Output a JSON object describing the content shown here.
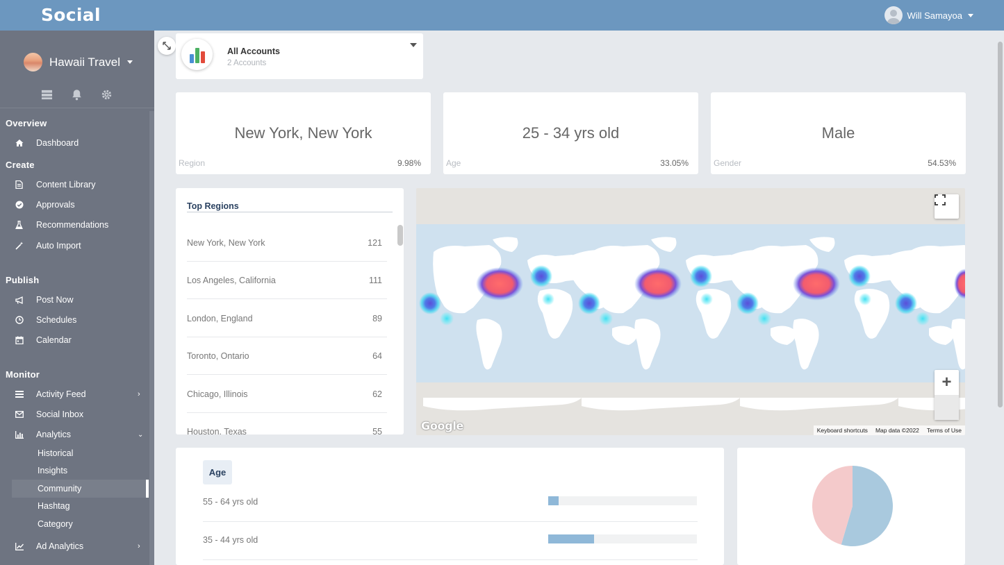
{
  "app": {
    "brand": "Social"
  },
  "user": {
    "name": "Will Samayoa"
  },
  "sidebar": {
    "account_name": "Hawaii Travel",
    "sections": {
      "overview": "Overview",
      "create": "Create",
      "publish": "Publish",
      "monitor": "Monitor"
    },
    "items": {
      "dashboard": "Dashboard",
      "content_library": "Content Library",
      "approvals": "Approvals",
      "recommendations": "Recommendations",
      "auto_import": "Auto Import",
      "post_now": "Post Now",
      "schedules": "Schedules",
      "calendar": "Calendar",
      "activity_feed": "Activity Feed",
      "social_inbox": "Social Inbox",
      "analytics": "Analytics",
      "historical": "Historical",
      "insights": "Insights",
      "community": "Community",
      "hashtag": "Hashtag",
      "category": "Category",
      "ad_analytics": "Ad Analytics"
    }
  },
  "account_selector": {
    "title": "All Accounts",
    "subtitle": "2 Accounts"
  },
  "stats": [
    {
      "value": "New York, New York",
      "label": "Region",
      "percent": "9.98%"
    },
    {
      "value": "25 - 34 yrs old",
      "label": "Age",
      "percent": "33.05%"
    },
    {
      "value": "Male",
      "label": "Gender",
      "percent": "54.53%"
    }
  ],
  "top_regions": {
    "title": "Top Regions",
    "rows": [
      {
        "name": "New York, New York",
        "count": "121"
      },
      {
        "name": "Los Angeles, California",
        "count": "111"
      },
      {
        "name": "London, England",
        "count": "89"
      },
      {
        "name": "Toronto, Ontario",
        "count": "64"
      },
      {
        "name": "Chicago, Illinois",
        "count": "62"
      },
      {
        "name": "Houston, Texas",
        "count": "55"
      }
    ]
  },
  "map": {
    "logo": "Google",
    "keyboard_shortcuts": "Keyboard shortcuts",
    "map_data": "Map data ©2022",
    "terms": "Terms of Use"
  },
  "age": {
    "tab": "Age",
    "rows": [
      {
        "label": "55 - 64 yrs old",
        "fraction": 0.07
      },
      {
        "label": "35 - 44 yrs old",
        "fraction": 0.31
      }
    ]
  },
  "gender_pie": {
    "slices": [
      {
        "value": 54.53,
        "color": "#a9c9de"
      },
      {
        "value": 45.47,
        "color": "#f4cacb"
      }
    ]
  },
  "colors": {
    "topbar": "#6c97bf",
    "sidebar": "#6e7481",
    "bar": "#8fb8d8"
  }
}
